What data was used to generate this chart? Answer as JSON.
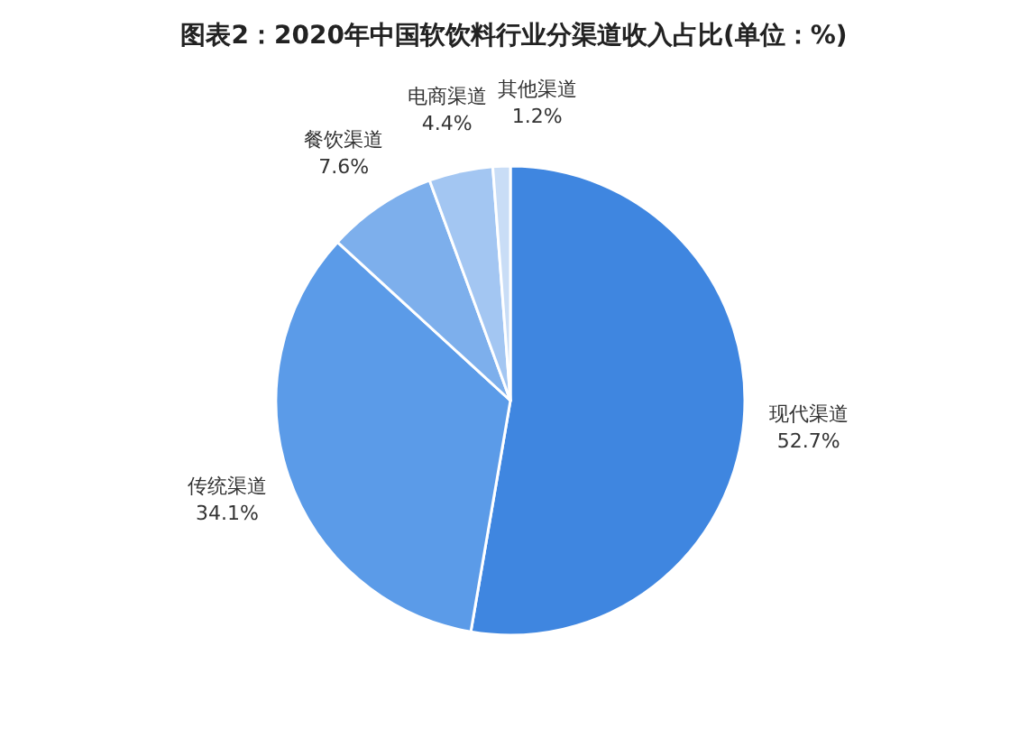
{
  "chart_data": {
    "type": "pie",
    "title": "图表2：2020年中国软饮料行业分渠道收入占比(单位：%)",
    "categories": [
      "现代渠道",
      "传统渠道",
      "餐饮渠道",
      "电商渠道",
      "其他渠道"
    ],
    "values": [
      52.7,
      34.1,
      7.6,
      4.4,
      1.2
    ],
    "colors": [
      "#3f86e0",
      "#5b9be8",
      "#7dafec",
      "#a3c6f2",
      "#c9ddf6"
    ],
    "value_labels": [
      "52.7%",
      "34.1%",
      "7.6%",
      "4.4%",
      "1.2%"
    ]
  }
}
